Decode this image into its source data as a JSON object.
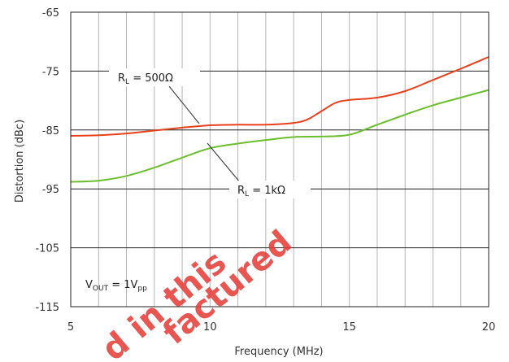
{
  "chart_data": {
    "type": "line",
    "xlabel": "Frequency (MHz)",
    "ylabel": "Distortion (dBc)",
    "xlim": [
      5,
      20
    ],
    "ylim": [
      -115,
      -65
    ],
    "x_ticks": [
      5,
      10,
      15,
      20
    ],
    "y_ticks": [
      -65,
      -75,
      -85,
      -95,
      -105,
      -115
    ],
    "grid": true,
    "series": [
      {
        "name": "RL = 500Ω",
        "color": "#e8401c",
        "x": [
          5,
          6,
          7,
          8,
          9,
          10,
          11,
          12,
          13,
          13.5,
          14,
          14.5,
          15,
          16,
          17,
          18,
          19,
          20
        ],
        "y": [
          -86,
          -85.9,
          -85.6,
          -85.1,
          -84.6,
          -84.2,
          -84.1,
          -84.1,
          -83.8,
          -83.2,
          -81.8,
          -80.4,
          -79.9,
          -79.5,
          -78.4,
          -76.5,
          -74.6,
          -72.6
        ]
      },
      {
        "name": "RL = 1kΩ",
        "color": "#6bbf2e",
        "x": [
          5,
          6,
          7,
          8,
          9,
          10,
          11,
          12,
          13,
          14,
          15,
          16,
          17,
          18,
          19,
          20
        ],
        "y": [
          -93.8,
          -93.6,
          -92.8,
          -91.4,
          -89.7,
          -88.1,
          -87.3,
          -86.7,
          -86.2,
          -86.1,
          -85.8,
          -84.1,
          -82.4,
          -80.8,
          -79.5,
          -78.2
        ]
      }
    ],
    "annotations": {
      "label_500_main": "R",
      "label_500_sub": "L",
      "label_500_rest": " = 500Ω",
      "label_1k_main": "R",
      "label_1k_sub": "L",
      "label_1k_rest": " = 1kΩ",
      "vout_main": "V",
      "vout_sub": "OUT",
      "vout_mid": " = 1V",
      "vout_sub2": "pp"
    },
    "watermark": [
      "d in this",
      "factured"
    ]
  }
}
